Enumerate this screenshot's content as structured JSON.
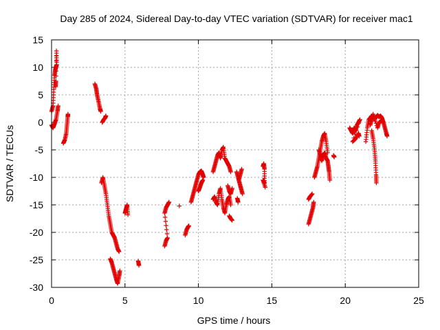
{
  "chart_data": {
    "type": "scatter",
    "title": "Day 285 of 2024, Sidereal Day-to-day VTEC variation (SDTVAR) for receiver mac1",
    "xlabel": "GPS time / hours",
    "ylabel": "SDTVAR / TECUs",
    "xlim": [
      0,
      25
    ],
    "ylim": [
      -30,
      15
    ],
    "xticks": [
      0,
      5,
      10,
      15,
      20,
      25
    ],
    "yticks": [
      -30,
      -25,
      -20,
      -15,
      -10,
      -5,
      0,
      5,
      10,
      15
    ],
    "xtick_labels": [
      "0",
      "5",
      "10",
      "15",
      "20",
      "25"
    ],
    "ytick_labels": [
      "-30",
      "-25",
      "-20",
      "-15",
      "-10",
      "-5",
      "0",
      "5",
      "10",
      "15"
    ],
    "grid": true,
    "marker": "+",
    "marker_color": "#e00000",
    "series": [
      {
        "name": "mac1",
        "segments": [
          [
            [
              0.0,
              2.0
            ],
            [
              0.1,
              3.0
            ],
            [
              0.15,
              6.0
            ],
            [
              0.2,
              8.5
            ],
            [
              0.25,
              9.5
            ],
            [
              0.3,
              10.0
            ],
            [
              0.35,
              10.5
            ],
            [
              0.33,
              13.0
            ],
            [
              0.3,
              7.5
            ],
            [
              0.28,
              6.5
            ]
          ],
          [
            [
              0.0,
              -0.5
            ],
            [
              0.1,
              -1.0
            ],
            [
              0.2,
              -0.3
            ],
            [
              0.3,
              0.5
            ],
            [
              0.4,
              2.0
            ],
            [
              0.45,
              3.0
            ]
          ],
          [
            [
              0.8,
              -3.8
            ],
            [
              0.9,
              -3.2
            ],
            [
              1.0,
              -2.0
            ],
            [
              1.05,
              -0.5
            ],
            [
              1.1,
              1.0
            ],
            [
              1.12,
              1.5
            ]
          ],
          [
            [
              2.95,
              7.0
            ],
            [
              3.05,
              6.0
            ],
            [
              3.1,
              5.0
            ],
            [
              3.2,
              3.8
            ],
            [
              3.3,
              2.5
            ],
            [
              3.35,
              2.0
            ]
          ],
          [
            [
              3.45,
              0.0
            ],
            [
              3.55,
              0.5
            ],
            [
              3.65,
              0.8
            ],
            [
              3.7,
              1.2
            ]
          ],
          [
            [
              3.4,
              -11.0
            ],
            [
              3.5,
              -10.0
            ],
            [
              3.6,
              -11.5
            ],
            [
              3.7,
              -13.0
            ],
            [
              3.8,
              -15.0
            ],
            [
              3.9,
              -17.0
            ],
            [
              4.0,
              -18.5
            ],
            [
              4.1,
              -20.0
            ],
            [
              4.2,
              -20.5
            ],
            [
              4.3,
              -21.0
            ],
            [
              4.4,
              -22.0
            ],
            [
              4.5,
              -23.0
            ],
            [
              4.6,
              -23.5
            ]
          ],
          [
            [
              4.0,
              -24.8
            ],
            [
              4.1,
              -25.5
            ],
            [
              4.2,
              -26.5
            ],
            [
              4.3,
              -27.5
            ],
            [
              4.4,
              -28.5
            ],
            [
              4.5,
              -29.3
            ],
            [
              4.6,
              -28.0
            ],
            [
              4.65,
              -27.0
            ]
          ],
          [
            [
              5.0,
              -16.5
            ],
            [
              5.05,
              -16.0
            ],
            [
              5.1,
              -15.5
            ],
            [
              5.15,
              -15.0
            ],
            [
              5.2,
              -16.8
            ]
          ],
          [
            [
              5.9,
              -25.2
            ],
            [
              5.95,
              -26.0
            ]
          ],
          [
            [
              7.7,
              -22.5
            ],
            [
              7.8,
              -21.5
            ],
            [
              7.9,
              -21.0
            ],
            [
              7.7,
              -16.5
            ],
            [
              7.8,
              -15.5
            ],
            [
              7.9,
              -15.0
            ],
            [
              8.0,
              -14.5
            ]
          ],
          [
            [
              8.7,
              -15.2
            ]
          ],
          [
            [
              9.1,
              -20.5
            ],
            [
              9.2,
              -19.5
            ],
            [
              9.3,
              -19.0
            ],
            [
              9.35,
              -18.8
            ]
          ],
          [
            [
              9.5,
              -14.5
            ],
            [
              9.6,
              -13.5
            ],
            [
              9.7,
              -12.5
            ],
            [
              9.8,
              -11.5
            ],
            [
              9.9,
              -10.5
            ],
            [
              10.0,
              -9.5
            ],
            [
              10.1,
              -9.0
            ],
            [
              10.2,
              -8.8
            ],
            [
              10.3,
              -9.5
            ],
            [
              10.35,
              -10.0
            ]
          ],
          [
            [
              10.0,
              -12.5
            ],
            [
              10.1,
              -11.8
            ],
            [
              10.2,
              -11.0
            ],
            [
              10.3,
              -10.5
            ]
          ],
          [
            [
              11.0,
              -14.0
            ],
            [
              11.1,
              -13.5
            ],
            [
              11.2,
              -14.5
            ],
            [
              11.3,
              -15.0
            ],
            [
              11.4,
              -13.0
            ],
            [
              11.5,
              -12.0
            ],
            [
              11.6,
              -14.0
            ],
            [
              11.7,
              -15.5
            ],
            [
              11.8,
              -16.5
            ],
            [
              11.9,
              -15.0
            ],
            [
              12.0,
              -14.0
            ],
            [
              12.1,
              -13.5
            ],
            [
              12.2,
              -15.0
            ]
          ],
          [
            [
              11.0,
              -9.0
            ],
            [
              11.1,
              -8.0
            ],
            [
              11.2,
              -7.0
            ],
            [
              11.3,
              -6.0
            ],
            [
              11.4,
              -5.5
            ],
            [
              11.5,
              -6.5
            ],
            [
              11.6,
              -5.0
            ],
            [
              11.7,
              -4.5
            ],
            [
              11.8,
              -6.5
            ],
            [
              11.9,
              -7.0
            ],
            [
              12.0,
              -7.5
            ],
            [
              12.1,
              -8.0
            ],
            [
              12.2,
              -9.0
            ]
          ],
          [
            [
              12.0,
              -11.5
            ],
            [
              12.1,
              -12.5
            ],
            [
              12.2,
              -13.0
            ],
            [
              12.3,
              -12.0
            ]
          ],
          [
            [
              12.6,
              -9.0
            ],
            [
              12.7,
              -10.0
            ],
            [
              12.8,
              -11.0
            ],
            [
              12.9,
              -12.0
            ],
            [
              13.0,
              -13.0
            ],
            [
              12.75,
              -10.5
            ],
            [
              12.85,
              -9.5
            ],
            [
              12.95,
              -8.5
            ]
          ],
          [
            [
              12.7,
              -14.5
            ],
            [
              12.65,
              -13.8
            ]
          ],
          [
            [
              12.1,
              -17.0
            ],
            [
              12.2,
              -17.5
            ],
            [
              12.3,
              -17.8
            ]
          ],
          [
            [
              14.4,
              -8.0
            ],
            [
              14.45,
              -7.5
            ],
            [
              14.5,
              -8.5
            ],
            [
              14.5,
              -11.0
            ],
            [
              14.4,
              -10.5
            ],
            [
              14.55,
              -11.8
            ]
          ],
          [
            [
              17.5,
              -18.5
            ],
            [
              17.6,
              -17.5
            ],
            [
              17.7,
              -16.5
            ],
            [
              17.8,
              -15.5
            ],
            [
              17.85,
              -14.5
            ]
          ],
          [
            [
              17.5,
              -14.0
            ],
            [
              17.6,
              -13.5
            ],
            [
              17.75,
              -13.0
            ]
          ],
          [
            [
              17.9,
              -10.0
            ],
            [
              18.0,
              -9.0
            ],
            [
              18.1,
              -8.0
            ],
            [
              18.2,
              -6.5
            ],
            [
              18.3,
              -5.0
            ],
            [
              18.4,
              -3.5
            ],
            [
              18.5,
              -2.5
            ],
            [
              18.6,
              -2.0
            ],
            [
              18.7,
              -3.5
            ],
            [
              18.8,
              -5.5
            ]
          ],
          [
            [
              18.2,
              -5.0
            ],
            [
              18.3,
              -6.0
            ],
            [
              18.4,
              -7.0
            ],
            [
              18.5,
              -6.0
            ],
            [
              18.6,
              -5.5
            ],
            [
              18.7,
              -6.5
            ],
            [
              18.8,
              -7.0
            ],
            [
              18.85,
              -8.0
            ],
            [
              18.9,
              -9.0
            ],
            [
              18.95,
              -10.5
            ]
          ],
          [
            [
              19.2,
              -6.0
            ],
            [
              19.25,
              -6.3
            ]
          ],
          [
            [
              20.3,
              -1.0
            ],
            [
              20.4,
              -1.5
            ],
            [
              20.5,
              -2.0
            ],
            [
              20.6,
              -1.0
            ],
            [
              20.7,
              -1.5
            ],
            [
              20.8,
              -0.5
            ],
            [
              20.9,
              0.0
            ],
            [
              21.0,
              0.5
            ],
            [
              20.5,
              -3.5
            ],
            [
              20.7,
              -3.0
            ],
            [
              20.9,
              -2.0
            ],
            [
              20.95,
              -2.5
            ]
          ],
          [
            [
              21.4,
              -3.5
            ],
            [
              21.5,
              -1.0
            ],
            [
              21.6,
              0.5
            ],
            [
              21.7,
              0.8
            ],
            [
              21.8,
              1.2
            ],
            [
              21.9,
              1.0
            ],
            [
              22.0,
              0.5
            ],
            [
              22.1,
              1.0
            ],
            [
              22.2,
              1.3
            ],
            [
              22.3,
              1.0
            ],
            [
              22.4,
              1.2
            ],
            [
              22.5,
              0.8
            ],
            [
              22.6,
              0.0
            ],
            [
              22.7,
              -1.0
            ],
            [
              22.8,
              -2.0
            ],
            [
              22.85,
              -2.5
            ]
          ],
          [
            [
              21.8,
              -1.5
            ],
            [
              21.9,
              -3.0
            ],
            [
              22.0,
              -5.0
            ],
            [
              22.05,
              -7.0
            ],
            [
              22.1,
              -9.5
            ],
            [
              22.12,
              -11.0
            ]
          ],
          [
            [
              21.7,
              -0.5
            ],
            [
              21.8,
              0.5
            ],
            [
              21.9,
              1.5
            ],
            [
              22.2,
              -1.0
            ],
            [
              22.3,
              0.0
            ],
            [
              22.5,
              0.3
            ]
          ]
        ]
      }
    ]
  }
}
